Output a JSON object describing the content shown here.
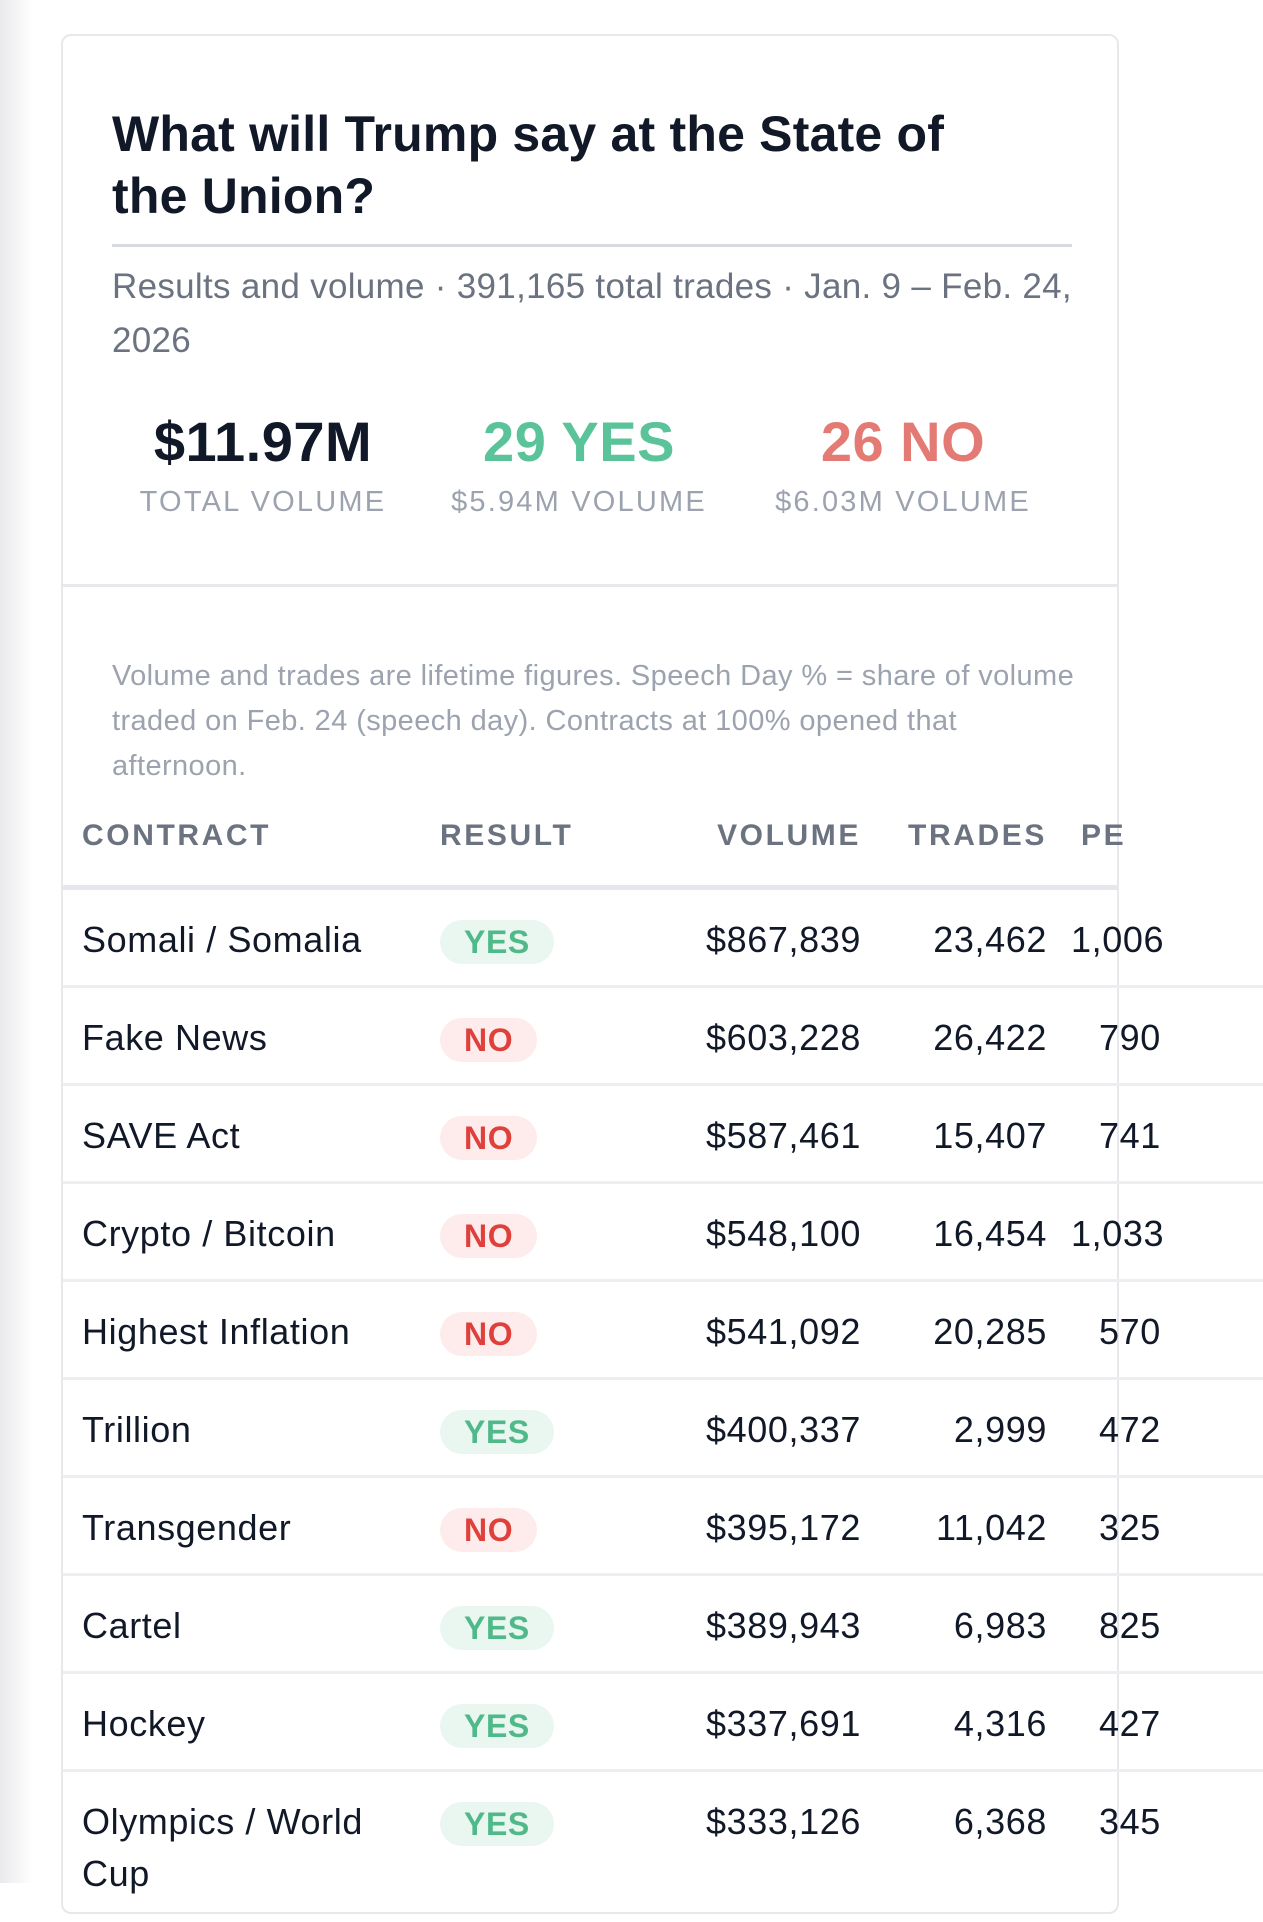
{
  "header": {
    "title": "What will Trump say at the State of the Union?",
    "subtitle": "Results and volume · 391,165 total trades · Jan. 9 – Feb. 24, 2026"
  },
  "stats": {
    "total": {
      "value": "$11.97M",
      "label": "TOTAL VOLUME"
    },
    "yes": {
      "value": "29 YES",
      "label": "$5.94M VOLUME"
    },
    "no": {
      "value": "26 NO",
      "label": "$6.03M VOLUME"
    }
  },
  "note": "Volume and trades are lifetime figures. Speech Day % = share of volume traded on Feb. 24 (speech day). Contracts at 100% opened that afternoon.",
  "table": {
    "columns": [
      "CONTRACT",
      "RESULT",
      "VOLUME",
      "TRADES",
      "PE"
    ],
    "rows": [
      {
        "contract": "Somali / Somalia",
        "result": "YES",
        "volume": "$867,839",
        "trades": "23,462",
        "pe": "1,006"
      },
      {
        "contract": "Fake News",
        "result": "NO",
        "volume": "$603,228",
        "trades": "26,422",
        "pe": "790"
      },
      {
        "contract": "SAVE Act",
        "result": "NO",
        "volume": "$587,461",
        "trades": "15,407",
        "pe": "741"
      },
      {
        "contract": "Crypto / Bitcoin",
        "result": "NO",
        "volume": "$548,100",
        "trades": "16,454",
        "pe": "1,033"
      },
      {
        "contract": "Highest Inflation",
        "result": "NO",
        "volume": "$541,092",
        "trades": "20,285",
        "pe": "570"
      },
      {
        "contract": "Trillion",
        "result": "YES",
        "volume": "$400,337",
        "trades": "2,999",
        "pe": "472"
      },
      {
        "contract": "Transgender",
        "result": "NO",
        "volume": "$395,172",
        "trades": "11,042",
        "pe": "325"
      },
      {
        "contract": "Cartel",
        "result": "YES",
        "volume": "$389,943",
        "trades": "6,983",
        "pe": "825"
      },
      {
        "contract": "Hockey",
        "result": "YES",
        "volume": "$337,691",
        "trades": "4,316",
        "pe": "427"
      },
      {
        "contract": "Olympics / World Cup",
        "result": "YES",
        "volume": "$333,126",
        "trades": "6,368",
        "pe": "345"
      }
    ]
  },
  "colors": {
    "yes": "#5ac39a",
    "no": "#e37b74",
    "badge_yes_bg": "#eaf7f1",
    "badge_no_bg": "#fdeceb",
    "muted": "#9ca3af"
  }
}
